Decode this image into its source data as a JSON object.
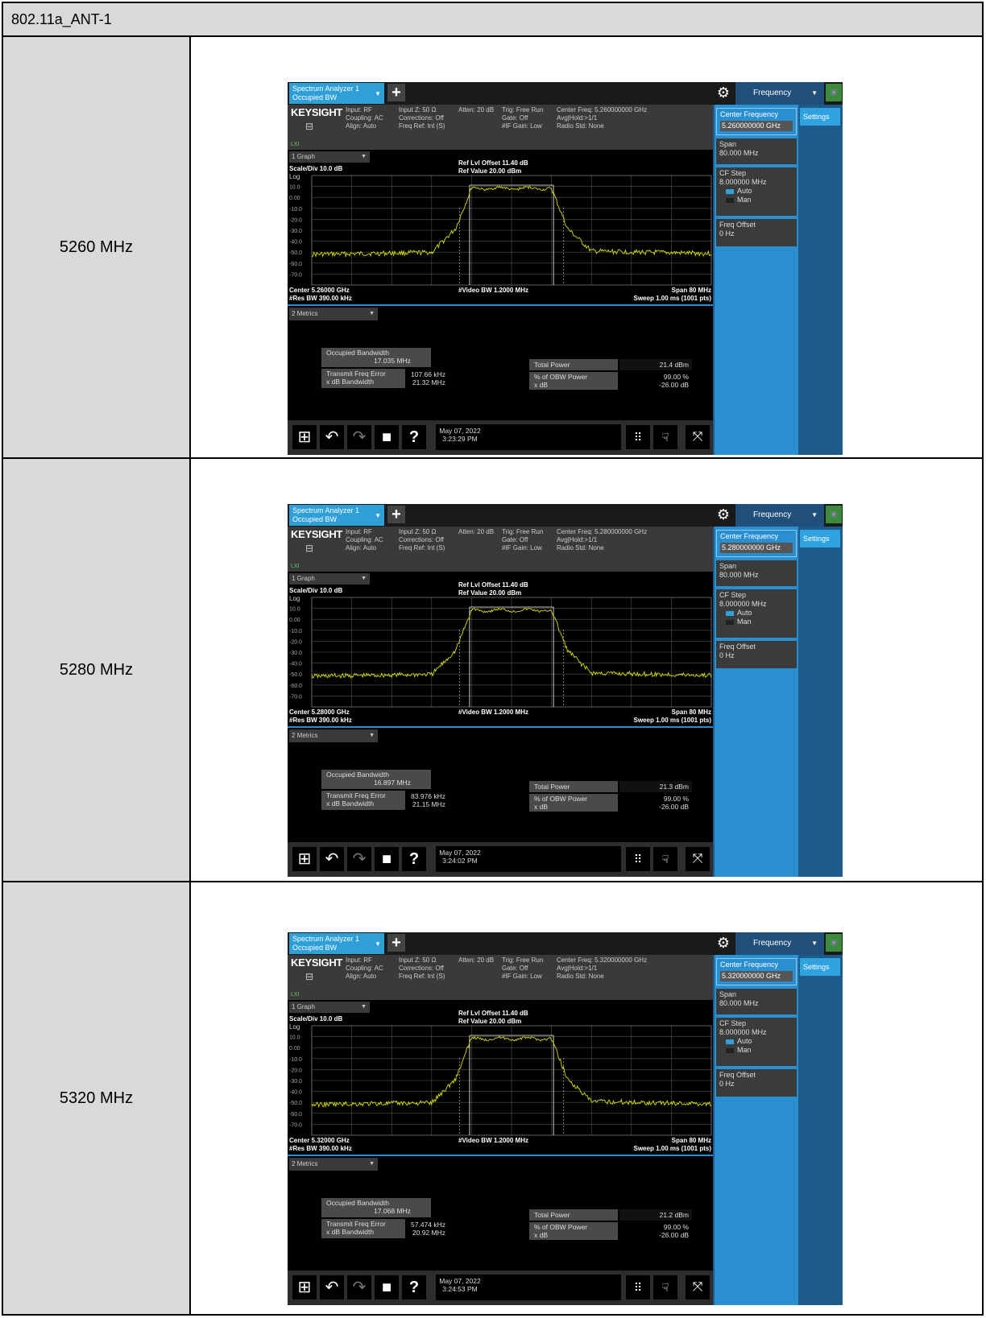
{
  "table_title": "802.11a_ANT-1",
  "rows": [
    {
      "label": "5260 MHz",
      "screen": {
        "tab_line1": "Spectrum Analyzer 1",
        "tab_line2": "Occupied BW",
        "freq_tab": "Frequency",
        "brand": "KEYSIGHT",
        "info_col1": "Input: RF\nCoupling: AC\nAlign: Auto",
        "info_col2": "Input Z: 50 Ω\nCorrections: Off\nFreq Ref: Int (S)",
        "info_col3": "Atten: 20 dB",
        "info_col4": "Trig: Free Run\nGate: Off\n#IF Gain: Low",
        "info_col5": "Center Freq: 5.260000000 GHz\nAvg|Hold:>1/1\nRadio Std: None",
        "lxi": "LXI",
        "graph_tab": "1 Graph",
        "scale": "Scale/Div 10.0 dB",
        "log": "Log",
        "ref_offset": "Ref Lvl Offset 11.40 dB",
        "ref_value": "Ref Value 20.00 dBm",
        "y_ticks": [
          "10.0",
          "0.00",
          "-10.0",
          "-20.0",
          "-30.0",
          "-40.0",
          "-50.0",
          "-60.0",
          "-70.0"
        ],
        "center": "Center 5.26000 GHz",
        "res_bw": "#Res BW 390.00 kHz",
        "video_bw": "#Video BW 1.2000 MHz",
        "span": "Span 80 MHz",
        "sweep": "Sweep 1.00 ms (1001 pts)",
        "metrics_tab": "2 Metrics",
        "obw_label": "Occupied Bandwidth",
        "obw_value": "17.035 MHz",
        "total_power_label": "Total Power",
        "total_power_value": "21.4 dBm",
        "tfe_label": "Transmit Freq Error",
        "tfe_value": "107.66 kHz",
        "xdb_bw_label": "x dB Bandwidth",
        "xdb_bw_value": "21.32 MHz",
        "obw_pct_label": "% of OBW Power",
        "obw_pct_value": "99.00 %",
        "xdb_label": "x dB",
        "xdb_value": "-26.00 dB",
        "date": "May 07, 2022",
        "time": "3:23:29 PM",
        "sk_center_label": "Center Frequency",
        "sk_center_value": "5.260000000 GHz",
        "sk_settings": "Settings",
        "sk_span_label": "Span",
        "sk_span_value": "80.000 MHz",
        "sk_cf_label": "CF Step",
        "sk_cf_value": "8.000000 MHz",
        "sk_auto": "Auto",
        "sk_man": "Man",
        "sk_offset_label": "Freq Offset",
        "sk_offset_value": "0 Hz"
      }
    },
    {
      "label": "5280 MHz",
      "screen": {
        "tab_line1": "Spectrum Analyzer 1",
        "tab_line2": "Occupied BW",
        "freq_tab": "Frequency",
        "brand": "KEYSIGHT",
        "info_col1": "Input: RF\nCoupling: AC\nAlign: Auto",
        "info_col2": "Input Z: 50 Ω\nCorrections: Off\nFreq Ref: Int (S)",
        "info_col3": "Atten: 20 dB",
        "info_col4": "Trig: Free Run\nGate: Off\n#IF Gain: Low",
        "info_col5": "Center Freq: 5.280000000 GHz\nAvg|Hold:>1/1\nRadio Std: None",
        "lxi": "LXI",
        "graph_tab": "1 Graph",
        "scale": "Scale/Div 10.0 dB",
        "log": "Log",
        "ref_offset": "Ref Lvl Offset 11.40 dB",
        "ref_value": "Ref Value 20.00 dBm",
        "y_ticks": [
          "10.0",
          "0.00",
          "-10.0",
          "-20.0",
          "-30.0",
          "-40.0",
          "-50.0",
          "-60.0",
          "-70.0"
        ],
        "center": "Center 5.28000 GHz",
        "res_bw": "#Res BW 390.00 kHz",
        "video_bw": "#Video BW 1.2000 MHz",
        "span": "Span 80 MHz",
        "sweep": "Sweep 1.00 ms (1001 pts)",
        "metrics_tab": "2 Metrics",
        "obw_label": "Occupied Bandwidth",
        "obw_value": "16.897 MHz",
        "total_power_label": "Total Power",
        "total_power_value": "21.3 dBm",
        "tfe_label": "Transmit Freq Error",
        "tfe_value": "83.976 kHz",
        "xdb_bw_label": "x dB Bandwidth",
        "xdb_bw_value": "21.15 MHz",
        "obw_pct_label": "% of OBW Power",
        "obw_pct_value": "99.00 %",
        "xdb_label": "x dB",
        "xdb_value": "-26.00 dB",
        "date": "May 07, 2022",
        "time": "3:24:02 PM",
        "sk_center_label": "Center Frequency",
        "sk_center_value": "5.280000000 GHz",
        "sk_settings": "Settings",
        "sk_span_label": "Span",
        "sk_span_value": "80.000 MHz",
        "sk_cf_label": "CF Step",
        "sk_cf_value": "8.000000 MHz",
        "sk_auto": "Auto",
        "sk_man": "Man",
        "sk_offset_label": "Freq Offset",
        "sk_offset_value": "0 Hz"
      }
    },
    {
      "label": "5320 MHz",
      "screen": {
        "tab_line1": "Spectrum Analyzer 1",
        "tab_line2": "Occupied BW",
        "freq_tab": "Frequency",
        "brand": "KEYSIGHT",
        "info_col1": "Input: RF\nCoupling: AC\nAlign: Auto",
        "info_col2": "Input Z: 50 Ω\nCorrections: Off\nFreq Ref: Int (S)",
        "info_col3": "Atten: 20 dB",
        "info_col4": "Trig: Free Run\nGate: Off\n#IF Gain: Low",
        "info_col5": "Center Freq: 5.320000000 GHz\nAvg|Hold:>1/1\nRadio Std: None",
        "lxi": "LXI",
        "graph_tab": "1 Graph",
        "scale": "Scale/Div 10.0 dB",
        "log": "Log",
        "ref_offset": "Ref Lvl Offset 11.40 dB",
        "ref_value": "Ref Value 20.00 dBm",
        "y_ticks": [
          "10.0",
          "0.00",
          "-10.0",
          "-20.0",
          "-30.0",
          "-40.0",
          "-50.0",
          "-60.0",
          "-70.0"
        ],
        "center": "Center 5.32000 GHz",
        "res_bw": "#Res BW 390.00 kHz",
        "video_bw": "#Video BW 1.2000 MHz",
        "span": "Span 80 MHz",
        "sweep": "Sweep 1.00 ms (1001 pts)",
        "metrics_tab": "2 Metrics",
        "obw_label": "Occupied Bandwidth",
        "obw_value": "17.068 MHz",
        "total_power_label": "Total Power",
        "total_power_value": "21.2 dBm",
        "tfe_label": "Transmit Freq Error",
        "tfe_value": "57.474 kHz",
        "xdb_bw_label": "x dB Bandwidth",
        "xdb_bw_value": "20.92 MHz",
        "obw_pct_label": "% of OBW Power",
        "obw_pct_value": "99.00 %",
        "xdb_label": "x dB",
        "xdb_value": "-26.00 dB",
        "date": "May 07, 2022",
        "time": "3:24:53 PM",
        "sk_center_label": "Center Frequency",
        "sk_center_value": "5.320000000 GHz",
        "sk_settings": "Settings",
        "sk_span_label": "Span",
        "sk_span_value": "80.000 MHz",
        "sk_cf_label": "CF Step",
        "sk_cf_value": "8.000000 MHz",
        "sk_auto": "Auto",
        "sk_man": "Man",
        "sk_offset_label": "Freq Offset",
        "sk_offset_value": "0 Hz"
      }
    }
  ],
  "colors": {
    "trace": "#d8e000",
    "accent": "#2a8fd0",
    "grid": "#555555"
  }
}
